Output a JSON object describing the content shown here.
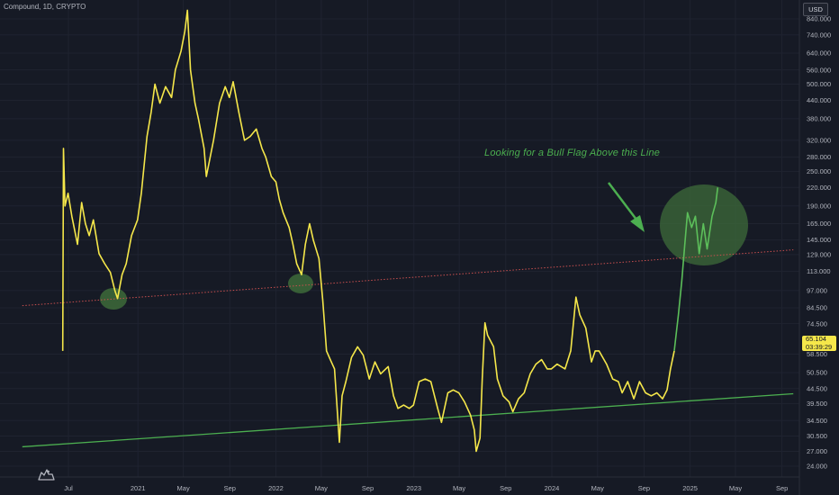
{
  "header": {
    "symbol": "Compound, 1D, CRYPTO",
    "currency": "USD"
  },
  "annotation": {
    "text": "Looking for a Bull Flag Above this Line"
  },
  "price_badge": {
    "price": "65.104",
    "countdown": "03:39:29"
  },
  "icons": {
    "logo": "tradingview-logo-icon",
    "arrow": "arrow-down-right-icon"
  },
  "colors": {
    "background": "#161a25",
    "price_line": "#f5e74a",
    "support_line": "#4caf50",
    "resistance_line": "#c94f4f",
    "highlight": "#3d6b3a",
    "rally": "#5cbf5a"
  },
  "chart_data": {
    "type": "line",
    "x_tick_labels": [
      "Jul",
      "2021",
      "May",
      "Sep",
      "2022",
      "May",
      "Sep",
      "2023",
      "May",
      "Sep",
      "2024",
      "May",
      "Sep",
      "2025",
      "May",
      "Sep"
    ],
    "y_scale": "log",
    "y_tick_labels": [
      "840.000",
      "740.000",
      "640.000",
      "560.000",
      "500.000",
      "440.000",
      "380.000",
      "320.000",
      "280.000",
      "250.000",
      "220.000",
      "190.000",
      "165.000",
      "145.000",
      "129.000",
      "113.000",
      "97.000",
      "84.500",
      "74.500",
      "58.500",
      "50.500",
      "44.500",
      "39.500",
      "34.500",
      "30.500",
      "27.000",
      "24.000"
    ],
    "y_ticks": [
      840,
      740,
      640,
      560,
      500,
      440,
      380,
      320,
      280,
      250,
      220,
      190,
      165,
      145,
      129,
      113,
      97,
      84.5,
      74.5,
      58.5,
      50.5,
      44.5,
      39.5,
      34.5,
      30.5,
      27,
      24
    ],
    "ylim": [
      22.6,
      930
    ],
    "series": [
      {
        "values": [
          [
            "2020-06-16",
            60
          ],
          [
            "2020-06-18",
            300
          ],
          [
            "2020-06-22",
            190
          ],
          [
            "2020-06-30",
            210
          ],
          [
            "2020-07-10",
            175
          ],
          [
            "2020-07-25",
            140
          ],
          [
            "2020-08-05",
            195
          ],
          [
            "2020-08-15",
            165
          ],
          [
            "2020-08-25",
            150
          ],
          [
            "2020-09-05",
            170
          ],
          [
            "2020-09-20",
            130
          ],
          [
            "2020-10-05",
            120
          ],
          [
            "2020-10-20",
            112
          ],
          [
            "2020-11-01",
            97
          ],
          [
            "2020-11-08",
            91
          ],
          [
            "2020-11-20",
            110
          ],
          [
            "2020-12-01",
            120
          ],
          [
            "2020-12-15",
            150
          ],
          [
            "2020-12-31",
            170
          ],
          [
            "2021-01-10",
            210
          ],
          [
            "2021-01-25",
            330
          ],
          [
            "2021-02-05",
            400
          ],
          [
            "2021-02-15",
            500
          ],
          [
            "2021-02-28",
            430
          ],
          [
            "2021-03-15",
            490
          ],
          [
            "2021-03-31",
            450
          ],
          [
            "2021-04-10",
            560
          ],
          [
            "2021-04-25",
            650
          ],
          [
            "2021-05-05",
            760
          ],
          [
            "2021-05-12",
            900
          ],
          [
            "2021-05-20",
            560
          ],
          [
            "2021-06-01",
            430
          ],
          [
            "2021-06-10",
            380
          ],
          [
            "2021-06-25",
            300
          ],
          [
            "2021-07-01",
            240
          ],
          [
            "2021-07-20",
            320
          ],
          [
            "2021-08-05",
            430
          ],
          [
            "2021-08-20",
            490
          ],
          [
            "2021-08-31",
            450
          ],
          [
            "2021-09-10",
            510
          ],
          [
            "2021-09-25",
            400
          ],
          [
            "2021-10-10",
            320
          ],
          [
            "2021-10-25",
            330
          ],
          [
            "2021-11-10",
            350
          ],
          [
            "2021-11-25",
            300
          ],
          [
            "2021-12-05",
            280
          ],
          [
            "2021-12-20",
            240
          ],
          [
            "2022-01-01",
            230
          ],
          [
            "2022-01-10",
            200
          ],
          [
            "2022-01-20",
            180
          ],
          [
            "2022-02-05",
            160
          ],
          [
            "2022-02-15",
            140
          ],
          [
            "2022-02-25",
            120
          ],
          [
            "2022-03-10",
            110
          ],
          [
            "2022-03-20",
            140
          ],
          [
            "2022-03-31",
            165
          ],
          [
            "2022-04-10",
            145
          ],
          [
            "2022-04-25",
            125
          ],
          [
            "2022-05-05",
            90
          ],
          [
            "2022-05-15",
            60
          ],
          [
            "2022-05-25",
            56
          ],
          [
            "2022-06-05",
            52
          ],
          [
            "2022-06-18",
            29
          ],
          [
            "2022-06-25",
            42
          ],
          [
            "2022-07-05",
            47
          ],
          [
            "2022-07-20",
            57
          ],
          [
            "2022-08-05",
            62
          ],
          [
            "2022-08-20",
            58
          ],
          [
            "2022-09-05",
            48
          ],
          [
            "2022-09-20",
            55
          ],
          [
            "2022-10-05",
            50
          ],
          [
            "2022-10-25",
            53
          ],
          [
            "2022-11-08",
            42
          ],
          [
            "2022-11-20",
            38
          ],
          [
            "2022-12-05",
            39
          ],
          [
            "2022-12-20",
            38
          ],
          [
            "2022-12-31",
            39
          ],
          [
            "2023-01-15",
            47
          ],
          [
            "2023-01-31",
            48
          ],
          [
            "2023-02-15",
            47
          ],
          [
            "2023-03-05",
            38
          ],
          [
            "2023-03-15",
            34
          ],
          [
            "2023-04-01",
            43
          ],
          [
            "2023-04-15",
            44
          ],
          [
            "2023-04-30",
            43
          ],
          [
            "2023-05-15",
            40
          ],
          [
            "2023-05-31",
            36
          ],
          [
            "2023-06-10",
            32
          ],
          [
            "2023-06-15",
            27
          ],
          [
            "2023-06-25",
            30
          ],
          [
            "2023-07-01",
            48
          ],
          [
            "2023-07-08",
            75
          ],
          [
            "2023-07-15",
            68
          ],
          [
            "2023-07-31",
            62
          ],
          [
            "2023-08-10",
            48
          ],
          [
            "2023-08-25",
            42
          ],
          [
            "2023-09-10",
            40
          ],
          [
            "2023-09-20",
            37
          ],
          [
            "2023-10-05",
            41
          ],
          [
            "2023-10-20",
            43
          ],
          [
            "2023-11-05",
            50
          ],
          [
            "2023-11-20",
            54
          ],
          [
            "2023-12-05",
            56
          ],
          [
            "2023-12-20",
            52
          ],
          [
            "2023-12-31",
            52
          ],
          [
            "2024-01-15",
            54
          ],
          [
            "2024-02-05",
            52
          ],
          [
            "2024-02-20",
            60
          ],
          [
            "2024-03-05",
            92
          ],
          [
            "2024-03-15",
            80
          ],
          [
            "2024-03-31",
            72
          ],
          [
            "2024-04-15",
            55
          ],
          [
            "2024-04-25",
            60
          ],
          [
            "2024-05-05",
            60
          ],
          [
            "2024-05-25",
            54
          ],
          [
            "2024-06-10",
            48
          ],
          [
            "2024-06-25",
            47
          ],
          [
            "2024-07-05",
            43
          ],
          [
            "2024-07-20",
            47
          ],
          [
            "2024-08-05",
            41
          ],
          [
            "2024-08-20",
            47
          ],
          [
            "2024-09-05",
            43
          ],
          [
            "2024-09-20",
            42
          ],
          [
            "2024-10-05",
            43
          ],
          [
            "2024-10-20",
            41
          ],
          [
            "2024-11-01",
            44
          ],
          [
            "2024-11-10",
            52
          ],
          [
            "2024-11-20",
            60
          ]
        ]
      },
      {
        "values": [
          [
            "2024-11-20",
            60
          ],
          [
            "2024-12-01",
            80
          ],
          [
            "2024-12-10",
            105
          ],
          [
            "2024-12-18",
            140
          ],
          [
            "2024-12-25",
            180
          ],
          [
            "2025-01-05",
            160
          ],
          [
            "2025-01-15",
            175
          ],
          [
            "2025-01-25",
            130
          ],
          [
            "2025-02-05",
            165
          ],
          [
            "2025-02-15",
            135
          ],
          [
            "2025-02-28",
            175
          ],
          [
            "2025-03-10",
            195
          ],
          [
            "2025-03-15",
            220
          ]
        ]
      }
    ],
    "trendlines": [
      {
        "from": [
          "2020-03-01",
          28
        ],
        "to": [
          "2025-10-01",
          42.7
        ]
      },
      {
        "from": [
          "2020-03-01",
          86
        ],
        "to": [
          "2025-10-01",
          134
        ]
      }
    ]
  }
}
